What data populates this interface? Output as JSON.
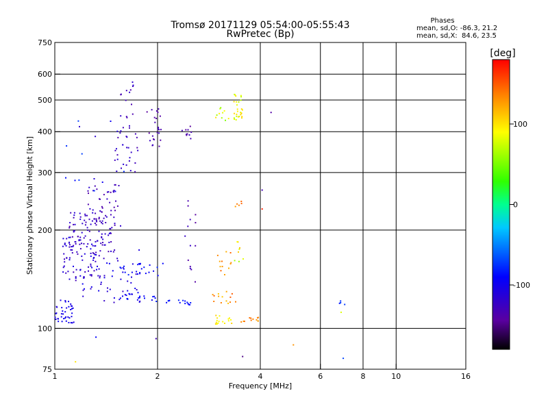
{
  "chart_data": {
    "type": "scatter",
    "title": "Tromsø 20171129 05:54:00-05:55:43",
    "subtitle": "RwPretec (Bp)",
    "stats": {
      "heading": "Phases",
      "line_o": "mean, sd,O: -86.3, 21.2",
      "line_x": "mean, sd,X:  84.6, 23.5"
    },
    "xlabel": "Frequency [MHz]",
    "ylabel": "Stationary phase Virtual Height [km]",
    "x_scale": "log",
    "y_scale": "log",
    "xlim": [
      1,
      16
    ],
    "ylim": [
      75,
      750
    ],
    "x_ticks": [
      1,
      2,
      4,
      6,
      8,
      10,
      16
    ],
    "x_tick_labels": [
      "1",
      "2",
      "4",
      "6",
      "8",
      "10",
      "16"
    ],
    "x_grid": [
      2,
      4,
      6,
      8,
      10
    ],
    "y_ticks": [
      75,
      100,
      200,
      300,
      400,
      500,
      600,
      750
    ],
    "y_tick_labels": [
      "75",
      "100",
      "200",
      "300",
      "400",
      "500",
      "600",
      "750"
    ],
    "y_grid": [
      100,
      200,
      300,
      400,
      500,
      600
    ],
    "grid": true,
    "colorbar": {
      "label": "[deg]",
      "min": -180,
      "max": 180,
      "ticks": [
        100,
        0,
        -100
      ],
      "tick_labels": [
        "100",
        "0",
        "-100"
      ]
    },
    "clusters": [
      {
        "x": [
          1.0,
          1.14
        ],
        "y": [
          103,
          122
        ],
        "phase": [
          -110,
          -95
        ],
        "n": 40
      },
      {
        "x": [
          1.05,
          1.35
        ],
        "y": [
          140,
          190
        ],
        "phase": [
          -130,
          -100
        ],
        "n": 70
      },
      {
        "x": [
          1.1,
          1.5
        ],
        "y": [
          170,
          230
        ],
        "phase": [
          -135,
          -110
        ],
        "n": 90
      },
      {
        "x": [
          1.25,
          1.6
        ],
        "y": [
          200,
          280
        ],
        "phase": [
          -140,
          -115
        ],
        "n": 45
      },
      {
        "x": [
          1.2,
          1.8
        ],
        "y": [
          120,
          175
        ],
        "phase": [
          -125,
          -95
        ],
        "n": 55
      },
      {
        "x": [
          1.5,
          1.75
        ],
        "y": [
          300,
          420
        ],
        "phase": [
          -135,
          -110
        ],
        "n": 30
      },
      {
        "x": [
          1.55,
          1.7
        ],
        "y": [
          440,
          590
        ],
        "phase": [
          -140,
          -115
        ],
        "n": 14
      },
      {
        "x": [
          1.85,
          2.05
        ],
        "y": [
          360,
          470
        ],
        "phase": [
          -145,
          -120
        ],
        "n": 24
      },
      {
        "x": [
          2.35,
          2.55
        ],
        "y": [
          380,
          420
        ],
        "phase": [
          -145,
          -125
        ],
        "n": 10
      },
      {
        "x": [
          1.55,
          2.1
        ],
        "y": [
          145,
          158
        ],
        "phase": [
          -100,
          -80
        ],
        "n": 22
      },
      {
        "x": [
          1.45,
          2.1
        ],
        "y": [
          120,
          128
        ],
        "phase": [
          -105,
          -80
        ],
        "n": 20
      },
      {
        "x": [
          2.1,
          2.5
        ],
        "y": [
          118,
          122
        ],
        "phase": [
          -95,
          -80
        ],
        "n": 14
      },
      {
        "x": [
          2.4,
          2.6
        ],
        "y": [
          135,
          250
        ],
        "phase": [
          -145,
          -115
        ],
        "n": 14
      },
      {
        "x": [
          2.95,
          3.3
        ],
        "y": [
          102,
          110
        ],
        "phase": [
          80,
          110
        ],
        "n": 16
      },
      {
        "x": [
          2.9,
          3.4
        ],
        "y": [
          118,
          130
        ],
        "phase": [
          110,
          150
        ],
        "n": 14
      },
      {
        "x": [
          3.0,
          3.3
        ],
        "y": [
          140,
          175
        ],
        "phase": [
          110,
          150
        ],
        "n": 12
      },
      {
        "x": [
          3.3,
          3.6
        ],
        "y": [
          160,
          185
        ],
        "phase": [
          60,
          120
        ],
        "n": 8
      },
      {
        "x": [
          3.5,
          3.95
        ],
        "y": [
          104,
          108
        ],
        "phase": [
          120,
          150
        ],
        "n": 12
      },
      {
        "x": [
          3.35,
          3.55
        ],
        "y": [
          430,
          520
        ],
        "phase": [
          70,
          110
        ],
        "n": 28
      },
      {
        "x": [
          2.95,
          3.25
        ],
        "y": [
          430,
          480
        ],
        "phase": [
          40,
          100
        ],
        "n": 10
      },
      {
        "x": [
          3.35,
          3.6
        ],
        "y": [
          225,
          255
        ],
        "phase": [
          120,
          150
        ],
        "n": 5
      },
      {
        "x": [
          6.8,
          7.2
        ],
        "y": [
          118,
          123
        ],
        "phase": [
          -90,
          -70
        ],
        "n": 4
      },
      {
        "x": [
          1.0,
          1.6
        ],
        "y": [
          260,
          440
        ],
        "phase": [
          -120,
          -60
        ],
        "n": 16
      }
    ],
    "points": [
      {
        "x": 6.9,
        "y": 112,
        "phase": 80
      },
      {
        "x": 7.0,
        "y": 81,
        "phase": -70
      },
      {
        "x": 5.0,
        "y": 89,
        "phase": 130
      },
      {
        "x": 4.05,
        "y": 232,
        "phase": 170
      },
      {
        "x": 4.05,
        "y": 265,
        "phase": -130
      },
      {
        "x": 4.3,
        "y": 458,
        "phase": -140
      },
      {
        "x": 3.55,
        "y": 82,
        "phase": -150
      },
      {
        "x": 1.98,
        "y": 93,
        "phase": -130
      },
      {
        "x": 1.32,
        "y": 94,
        "phase": -90
      },
      {
        "x": 1.15,
        "y": 79,
        "phase": 100
      }
    ]
  }
}
